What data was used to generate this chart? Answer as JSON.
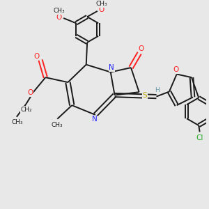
{
  "bg_color": "#e8e8e8",
  "bond_color": "#1a1a1a",
  "N_color": "#2020ff",
  "O_color": "#ff2020",
  "S_color": "#bbaa00",
  "Cl_color": "#22aa22",
  "H_color": "#6699aa",
  "lw": 1.4,
  "fs": 7.5,
  "fss": 6.5,
  "xlim": [
    0,
    10
  ],
  "ylim": [
    0,
    10
  ]
}
